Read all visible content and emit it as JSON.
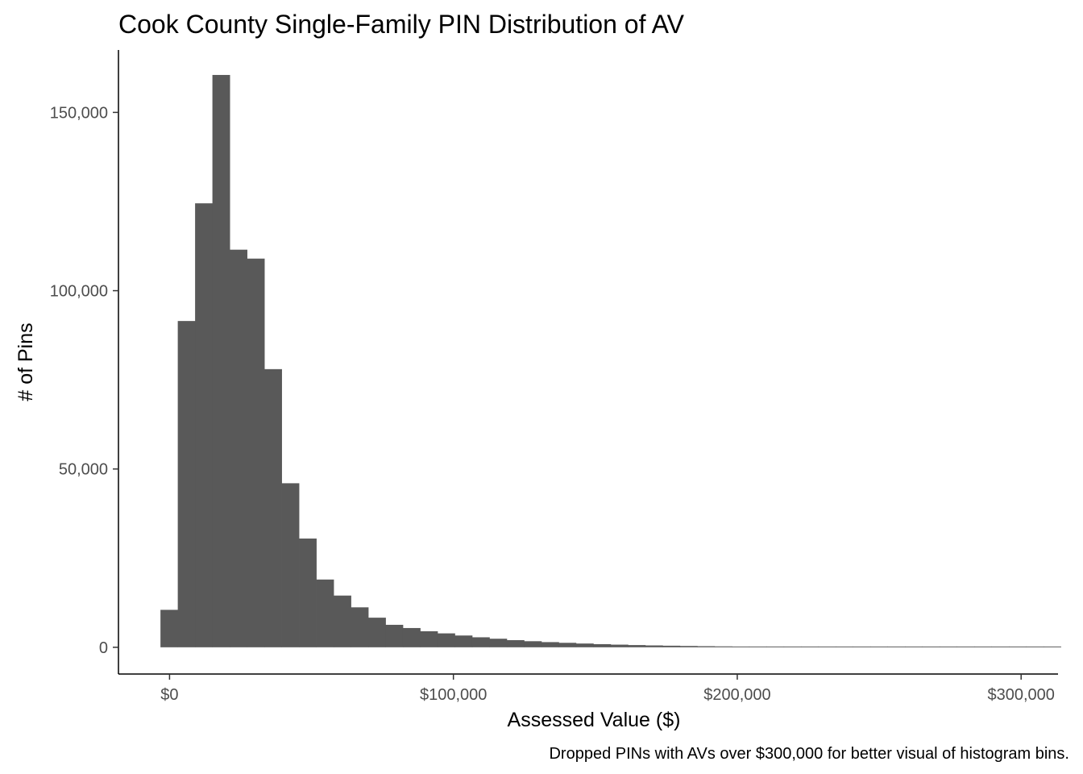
{
  "chart_data": {
    "type": "bar",
    "title": "Cook County Single-Family PIN Distribution of AV",
    "xlabel": "Assessed Value ($)",
    "ylabel": "# of Pins",
    "caption": "Dropped PINs with AVs over $300,000 for better visual of histogram bins.",
    "bar_color": "#595959",
    "bin_width": 6100,
    "bin_start": -3200,
    "values": [
      10500,
      91500,
      124500,
      160500,
      111500,
      109000,
      78000,
      46000,
      30500,
      19000,
      14500,
      11200,
      8300,
      6300,
      5400,
      4500,
      3900,
      3300,
      2800,
      2400,
      2000,
      1700,
      1450,
      1250,
      1050,
      880,
      740,
      620,
      520,
      440,
      370,
      310,
      260,
      220,
      190,
      160,
      135,
      115,
      100,
      85,
      72,
      62,
      53,
      46,
      40,
      35,
      30,
      26,
      22,
      19,
      17,
      15
    ],
    "xlim": [
      -18000,
      313000
    ],
    "ylim": [
      -7500,
      167500
    ],
    "x_ticks": [
      0,
      100000,
      200000,
      300000
    ],
    "x_tick_labels": [
      "$0",
      "$100,000",
      "$200,000",
      "$300,000"
    ],
    "y_ticks": [
      0,
      50000,
      100000,
      150000
    ],
    "y_tick_labels": [
      "0",
      "50,000",
      "100,000",
      "150,000"
    ],
    "grid": false
  }
}
